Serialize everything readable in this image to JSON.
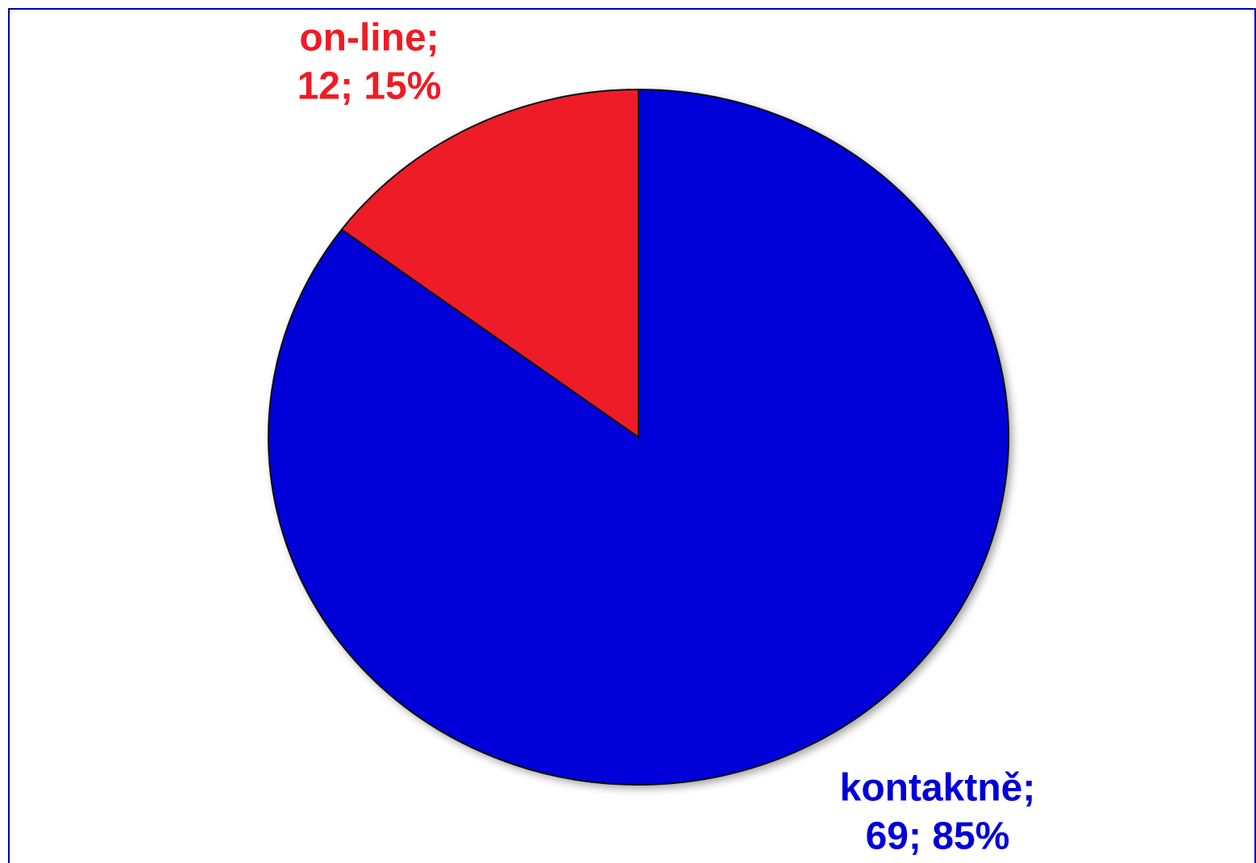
{
  "chart_data": {
    "type": "pie",
    "categories": [
      "kontaktně;",
      "on-line;"
    ],
    "values": [
      69,
      12
    ],
    "value_labels": [
      "69; 85%",
      "12; 15%"
    ],
    "colors": [
      "#0000d8",
      "#ee1c25"
    ]
  }
}
